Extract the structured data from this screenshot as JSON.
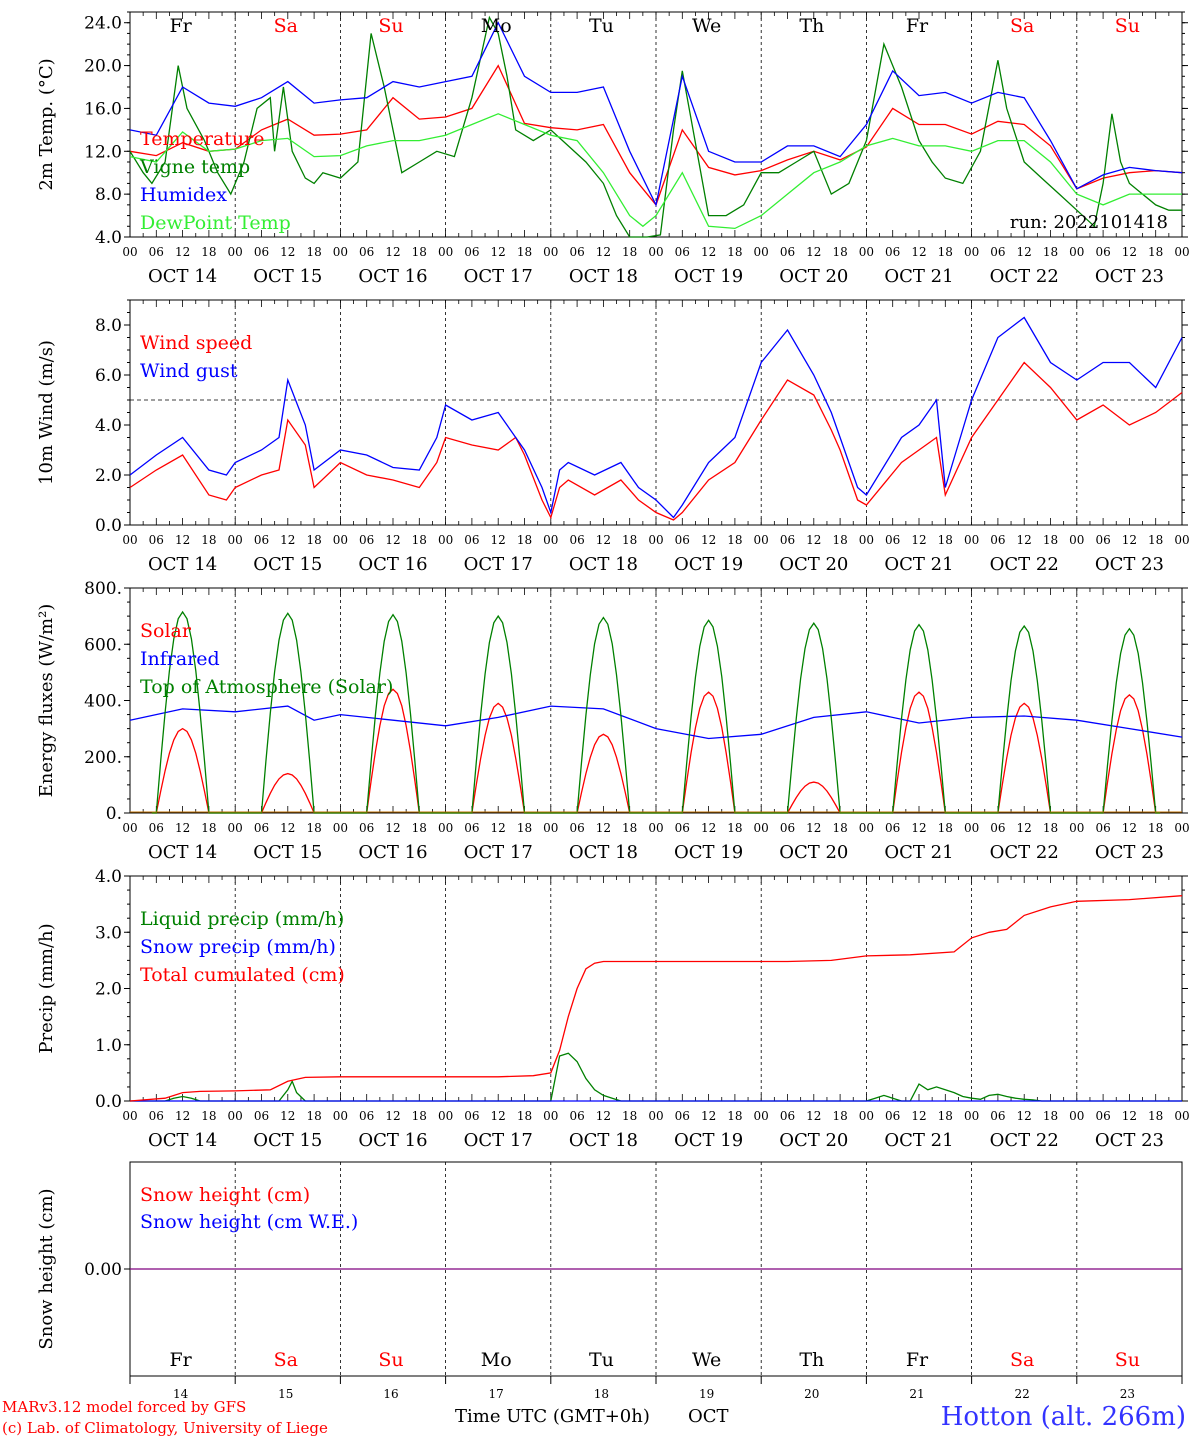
{
  "colors": {
    "red": "#ff0000",
    "green": "#008000",
    "blue": "#0000ff",
    "lime": "#33ee33",
    "purple": "#7f007f"
  },
  "run_label": "run: 2022101418",
  "days": {
    "labels": [
      "Fr",
      "Sa",
      "Su",
      "Mo",
      "Tu",
      "We",
      "Th",
      "Fr",
      "Sa",
      "Su"
    ],
    "weekend": [
      false,
      true,
      true,
      false,
      false,
      false,
      false,
      false,
      true,
      true
    ],
    "dates": [
      "OCT 14",
      "OCT 15",
      "OCT 16",
      "OCT 17",
      "OCT 18",
      "OCT 19",
      "OCT 20",
      "OCT 21",
      "OCT 22",
      "OCT 23"
    ],
    "numbers": [
      "14",
      "15",
      "16",
      "17",
      "18",
      "19",
      "20",
      "21",
      "22",
      "23"
    ]
  },
  "hour_ticks": [
    "00",
    "06",
    "12",
    "18"
  ],
  "hour_end": "00",
  "footer": {
    "credit_line1": "MARv3.12 model forced by GFS",
    "credit_line2": "(c) Lab. of Climatology, University of Liege",
    "time_axis": "Time UTC (GMT+0h)",
    "month": "OCT",
    "station": "Hotton (alt. 266m)"
  },
  "chart_data": [
    {
      "type": "line",
      "ylabel": "2m Temp. (°C)",
      "ylim": [
        4,
        25
      ],
      "yticks": [
        "4.0",
        "8.0",
        "12.0",
        "16.0",
        "20.0",
        "24.0"
      ],
      "ytick_values": [
        4,
        8,
        12,
        16,
        20,
        24
      ],
      "xlim_hours": [
        0,
        240
      ],
      "series": [
        {
          "name": "Temperature",
          "color": "red",
          "x": [
            0,
            6,
            12,
            18,
            24,
            30,
            36,
            42,
            48,
            54,
            60,
            66,
            72,
            78,
            84,
            90,
            96,
            102,
            108,
            114,
            120,
            126,
            132,
            138,
            144,
            150,
            156,
            162,
            168,
            174,
            180,
            186,
            192,
            198,
            204,
            210,
            216,
            222,
            228,
            234,
            240
          ],
          "y": [
            12,
            11.6,
            12.8,
            12,
            12.2,
            14,
            15,
            13.5,
            13.6,
            14,
            17,
            15,
            15.2,
            16,
            20,
            14.6,
            14.2,
            14,
            14.5,
            10,
            7,
            14,
            10.5,
            9.8,
            10.2,
            11.2,
            12,
            11.2,
            12.4,
            16,
            14.5,
            14.5,
            13.6,
            14.8,
            14.5,
            12.5,
            8.5,
            9.5,
            10,
            10.2,
            10
          ]
        },
        {
          "name": "Vigne temp",
          "color": "green",
          "x": [
            0,
            3,
            5,
            8,
            11,
            13,
            17,
            20,
            23,
            26,
            29,
            32,
            33,
            35,
            37,
            40,
            42,
            44,
            48,
            52,
            55,
            58,
            60,
            62,
            66,
            70,
            74,
            78,
            82,
            84,
            86,
            88,
            92,
            96,
            100,
            104,
            108,
            111,
            114,
            118,
            121,
            124,
            126,
            128,
            132,
            136,
            140,
            144,
            148,
            152,
            156,
            160,
            164,
            168,
            172,
            176,
            180,
            183,
            186,
            190,
            194,
            198,
            200,
            204,
            208,
            212,
            216,
            220,
            222,
            224,
            226,
            228,
            231,
            234,
            237,
            240
          ],
          "y": [
            12,
            10,
            9,
            11,
            20,
            16,
            13,
            10,
            8,
            11,
            16,
            17,
            12,
            18,
            12,
            9.5,
            9,
            10,
            9.5,
            11,
            23,
            18,
            14,
            10,
            11,
            12,
            11.5,
            17,
            24.5,
            23,
            19,
            14,
            13,
            14,
            12.5,
            11,
            9,
            6,
            4,
            4,
            4.2,
            14,
            19.5,
            15,
            6,
            6,
            7,
            10,
            10,
            11,
            12,
            8,
            9,
            13,
            22,
            18,
            13,
            11,
            9.5,
            9,
            12,
            20.5,
            16,
            11,
            9.5,
            8,
            6.5,
            5,
            9,
            15.5,
            11,
            9,
            8,
            7,
            6.5,
            6.5
          ]
        },
        {
          "name": "Humidex",
          "color": "blue",
          "x": [
            0,
            6,
            12,
            18,
            24,
            30,
            36,
            42,
            48,
            54,
            60,
            66,
            72,
            78,
            84,
            90,
            96,
            102,
            108,
            114,
            120,
            126,
            132,
            138,
            144,
            150,
            156,
            162,
            168,
            174,
            180,
            186,
            192,
            198,
            204,
            210,
            216,
            222,
            228,
            234,
            240
          ],
          "y": [
            14,
            13.5,
            18,
            16.5,
            16.2,
            17,
            18.5,
            16.5,
            16.8,
            17,
            18.5,
            18,
            18.5,
            19,
            24,
            19,
            17.5,
            17.5,
            18,
            12,
            7,
            19,
            12,
            11,
            11,
            12.5,
            12.5,
            11.5,
            14.5,
            19.5,
            17.2,
            17.5,
            16.5,
            17.5,
            17,
            13,
            8.5,
            9.8,
            10.5,
            10.2,
            10
          ]
        },
        {
          "name": "DewPoint Temp",
          "color": "lime",
          "x": [
            0,
            6,
            12,
            18,
            24,
            30,
            36,
            42,
            48,
            54,
            60,
            66,
            72,
            78,
            84,
            90,
            96,
            102,
            108,
            114,
            117,
            120,
            126,
            132,
            138,
            144,
            150,
            156,
            162,
            168,
            174,
            180,
            186,
            192,
            198,
            204,
            210,
            216,
            222,
            228,
            234,
            240
          ],
          "y": [
            11.5,
            11,
            13.8,
            12,
            12.2,
            13,
            13.2,
            11.5,
            11.6,
            12.5,
            13,
            13,
            13.5,
            14.5,
            15.5,
            14.5,
            13.5,
            13,
            10,
            6,
            5,
            6,
            10,
            5,
            4.8,
            6,
            8,
            10,
            11,
            12.5,
            13.2,
            12.5,
            12.5,
            12,
            13,
            13,
            11,
            8,
            7,
            8,
            8,
            8
          ]
        }
      ]
    },
    {
      "type": "line",
      "ylabel": "10m Wind (m/s)",
      "ylim": [
        0,
        9
      ],
      "yticks": [
        "0.0",
        "2.0",
        "4.0",
        "6.0",
        "8.0"
      ],
      "ytick_values": [
        0,
        2,
        4,
        6,
        8
      ],
      "reference_line": 5,
      "xlim_hours": [
        0,
        240
      ],
      "series": [
        {
          "name": "Wind speed",
          "color": "red",
          "x": [
            0,
            6,
            12,
            18,
            22,
            24,
            30,
            34,
            36,
            40,
            42,
            48,
            54,
            60,
            66,
            70,
            72,
            78,
            84,
            88,
            90,
            94,
            96,
            98,
            100,
            106,
            112,
            116,
            120,
            124,
            126,
            132,
            138,
            144,
            150,
            156,
            160,
            162,
            166,
            168,
            176,
            180,
            184,
            186,
            192,
            198,
            204,
            210,
            216,
            222,
            228,
            234,
            240
          ],
          "y": [
            1.5,
            2.2,
            2.8,
            1.2,
            1,
            1.5,
            2,
            2.2,
            4.2,
            3.2,
            1.5,
            2.5,
            2,
            1.8,
            1.5,
            2.5,
            3.5,
            3.2,
            3,
            3.5,
            2.8,
            1,
            0.3,
            1.5,
            1.8,
            1.2,
            1.8,
            1,
            0.5,
            0.2,
            0.5,
            1.8,
            2.5,
            4.2,
            5.8,
            5.2,
            3.8,
            3,
            1,
            0.8,
            2.5,
            3,
            3.5,
            1.2,
            3.5,
            5,
            6.5,
            5.5,
            4.2,
            4.8,
            4,
            4.5,
            5.3
          ]
        },
        {
          "name": "Wind gust",
          "color": "blue",
          "x": [
            0,
            6,
            12,
            18,
            22,
            24,
            30,
            34,
            36,
            40,
            42,
            48,
            54,
            60,
            66,
            70,
            72,
            78,
            84,
            88,
            90,
            94,
            96,
            98,
            100,
            106,
            112,
            116,
            120,
            124,
            126,
            132,
            138,
            144,
            150,
            156,
            160,
            162,
            166,
            168,
            176,
            180,
            184,
            186,
            192,
            198,
            204,
            210,
            216,
            222,
            228,
            234,
            240
          ],
          "y": [
            2,
            2.8,
            3.5,
            2.2,
            2,
            2.5,
            3,
            3.5,
            5.8,
            4,
            2.2,
            3,
            2.8,
            2.3,
            2.2,
            3.5,
            4.8,
            4.2,
            4.5,
            3.5,
            3,
            1.5,
            0.5,
            2.2,
            2.5,
            2,
            2.5,
            1.5,
            1,
            0.3,
            0.8,
            2.5,
            3.5,
            6.5,
            7.8,
            6,
            4.5,
            3.5,
            1.5,
            1.2,
            3.5,
            4,
            5,
            1.5,
            5,
            7.5,
            8.3,
            6.5,
            5.8,
            6.5,
            6.5,
            5.5,
            7.5
          ]
        }
      ]
    },
    {
      "type": "line",
      "ylabel": "Energy fluxes (W/m²)",
      "ylim": [
        0,
        800
      ],
      "yticks": [
        "0.",
        "200.",
        "400.",
        "600.",
        "800."
      ],
      "ytick_values": [
        0,
        200,
        400,
        600,
        800
      ],
      "xlim_hours": [
        0,
        240
      ],
      "series": [
        {
          "name": "Solar",
          "color": "red",
          "kind": "diurnal",
          "peaks": [
            300,
            140,
            440,
            390,
            280,
            430,
            110,
            430,
            390,
            420
          ]
        },
        {
          "name": "Infrared",
          "color": "blue",
          "x": [
            0,
            12,
            24,
            36,
            42,
            48,
            60,
            72,
            84,
            96,
            108,
            120,
            132,
            144,
            156,
            168,
            180,
            192,
            204,
            216,
            228,
            240
          ],
          "y": [
            330,
            370,
            360,
            380,
            330,
            350,
            330,
            310,
            340,
            380,
            370,
            300,
            265,
            280,
            340,
            360,
            320,
            340,
            345,
            330,
            300,
            270
          ]
        },
        {
          "name": "Top of Atmosphere (Solar)",
          "color": "green",
          "kind": "diurnal",
          "peaks": [
            715,
            710,
            705,
            700,
            695,
            685,
            675,
            670,
            665,
            655
          ]
        }
      ]
    },
    {
      "type": "line",
      "ylabel": "Precip (mm/h)",
      "ylim": [
        0,
        4
      ],
      "yticks": [
        "0.0",
        "1.0",
        "2.0",
        "3.0",
        "4.0"
      ],
      "ytick_values": [
        0,
        1,
        2,
        3,
        4
      ],
      "xlim_hours": [
        0,
        240
      ],
      "series": [
        {
          "name": "Liquid precip (mm/h)",
          "color": "green",
          "x": [
            0,
            8,
            10,
            12,
            14,
            16,
            34,
            36,
            37,
            38,
            40,
            96,
            97,
            98,
            100,
            102,
            104,
            106,
            108,
            110,
            112,
            150,
            168,
            170,
            172,
            174,
            176,
            178,
            180,
            182,
            184,
            186,
            188,
            190,
            192,
            194,
            196,
            198,
            200,
            202,
            204,
            206,
            208,
            210,
            212,
            240
          ],
          "y": [
            0,
            0,
            0.05,
            0.08,
            0.05,
            0,
            0,
            0.2,
            0.35,
            0.15,
            0,
            0,
            0.4,
            0.8,
            0.85,
            0.7,
            0.4,
            0.2,
            0.1,
            0.05,
            0,
            0,
            0,
            0.05,
            0.1,
            0.05,
            0,
            0,
            0.3,
            0.2,
            0.25,
            0.2,
            0.15,
            0.08,
            0.05,
            0.03,
            0.1,
            0.12,
            0.08,
            0.05,
            0.03,
            0.02,
            0,
            0,
            0,
            0
          ]
        },
        {
          "name": "Snow precip (mm/h)",
          "color": "blue",
          "x": [
            0,
            240
          ],
          "y": [
            0,
            0
          ]
        },
        {
          "name": "Total cumulated (cm)",
          "color": "red",
          "x": [
            0,
            8,
            12,
            16,
            24,
            32,
            36,
            40,
            48,
            60,
            72,
            84,
            92,
            96,
            98,
            100,
            102,
            104,
            106,
            108,
            112,
            120,
            150,
            160,
            168,
            178,
            188,
            192,
            196,
            200,
            204,
            210,
            216,
            228,
            240
          ],
          "y": [
            0,
            0.05,
            0.15,
            0.17,
            0.18,
            0.2,
            0.35,
            0.42,
            0.43,
            0.43,
            0.43,
            0.43,
            0.45,
            0.5,
            0.9,
            1.5,
            2,
            2.35,
            2.45,
            2.48,
            2.48,
            2.48,
            2.48,
            2.5,
            2.58,
            2.6,
            2.65,
            2.9,
            3,
            3.05,
            3.3,
            3.45,
            3.55,
            3.58,
            3.65
          ]
        }
      ]
    },
    {
      "type": "line",
      "ylabel": "Snow height (cm)",
      "yticks": [
        "0.00"
      ],
      "ytick_values": [
        0
      ],
      "xlim_hours": [
        0,
        240
      ],
      "series": [
        {
          "name": "Snow height (cm)",
          "color": "red",
          "x": [
            0,
            240
          ],
          "y": [
            0,
            0
          ]
        },
        {
          "name": "Snow height (cm W.E.)",
          "color": "blue",
          "x": [
            0,
            240
          ],
          "y": [
            0,
            0
          ]
        }
      ]
    }
  ]
}
